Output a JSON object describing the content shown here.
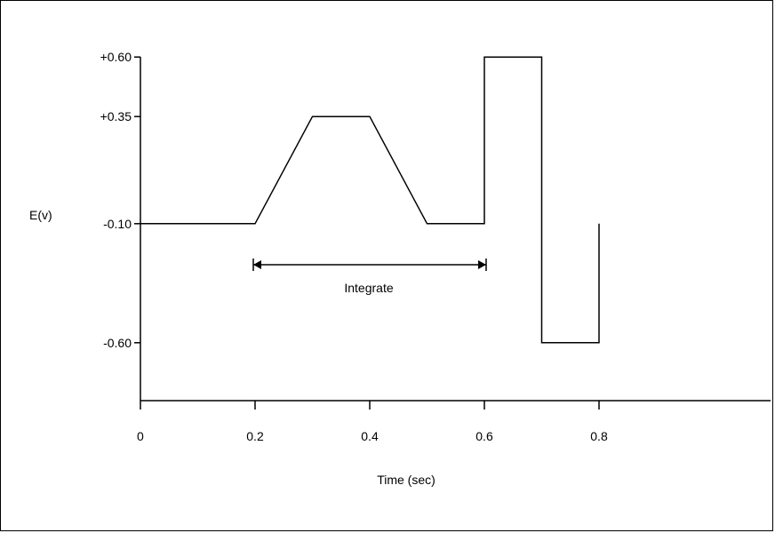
{
  "chart_data": {
    "type": "line",
    "title": "",
    "xlabel": "Time (sec)",
    "ylabel": "E(v)",
    "xlim": [
      0,
      1.1
    ],
    "ylim": [
      -0.9,
      0.83
    ],
    "x_ticks": [
      {
        "value": 0,
        "label": "0"
      },
      {
        "value": 0.2,
        "label": "0.2"
      },
      {
        "value": 0.4,
        "label": "0.4"
      },
      {
        "value": 0.6,
        "label": "0.6"
      },
      {
        "value": 0.8,
        "label": "0.8"
      }
    ],
    "y_ticks": [
      {
        "value": 0.6,
        "label": "+0.60"
      },
      {
        "value": 0.35,
        "label": "+0.35"
      },
      {
        "value": -0.1,
        "label": "-0.10"
      },
      {
        "value": -0.6,
        "label": "-0.60"
      }
    ],
    "series": [
      {
        "x": [
          0,
          0.2,
          0.3,
          0.4,
          0.5,
          0.6,
          0.6,
          0.7,
          0.7,
          0.8,
          0.8
        ],
        "y": [
          -0.1,
          -0.1,
          0.35,
          0.35,
          -0.1,
          -0.1,
          0.6,
          0.6,
          -0.6,
          -0.6,
          -0.1
        ]
      }
    ],
    "annotations": [
      {
        "type": "double-arrow",
        "x_start": 0.2,
        "x_end": 0.6,
        "y": -0.22,
        "label": "Integrate"
      }
    ],
    "grid": false,
    "line_color": "#000000"
  }
}
